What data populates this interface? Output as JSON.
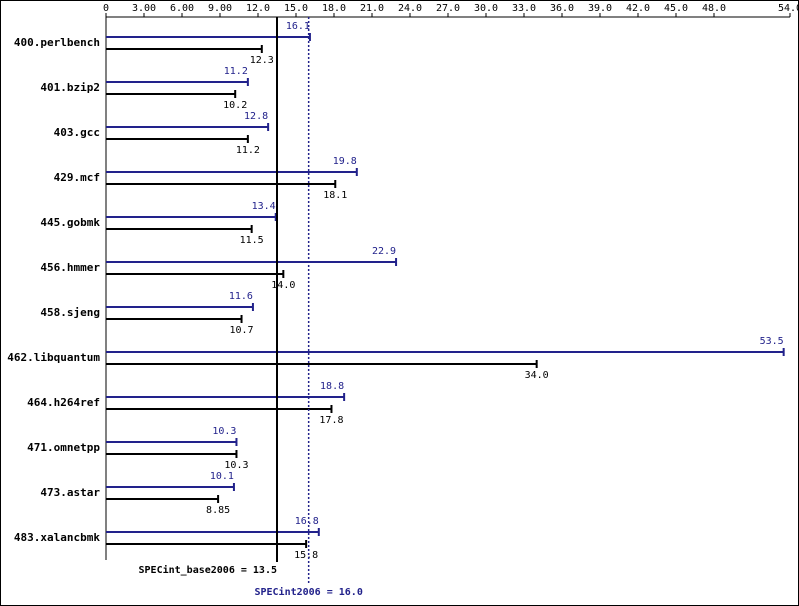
{
  "chart_data": {
    "type": "bar",
    "orientation": "horizontal",
    "categories": [
      "400.perlbench",
      "401.bzip2",
      "403.gcc",
      "429.mcf",
      "445.gobmk",
      "456.hmmer",
      "458.sjeng",
      "462.libquantum",
      "464.h264ref",
      "471.omnetpp",
      "473.astar",
      "483.xalancbmk"
    ],
    "series": [
      {
        "color": "#22228b",
        "values": [
          16.1,
          11.2,
          12.8,
          19.8,
          13.4,
          22.9,
          11.6,
          53.5,
          18.8,
          10.3,
          10.1,
          16.8
        ],
        "value_labels": [
          "16.1",
          "11.2",
          "12.8",
          "19.8",
          "13.4",
          "22.9",
          "11.6",
          "53.5",
          "18.8",
          "10.3",
          "10.1",
          "16.8"
        ]
      },
      {
        "color": "#000000",
        "values": [
          12.3,
          10.2,
          11.2,
          18.1,
          11.5,
          14.0,
          10.7,
          34.0,
          17.8,
          10.3,
          8.85,
          15.8
        ],
        "value_labels": [
          "12.3",
          "10.2",
          "11.2",
          "18.1",
          "11.5",
          "14.0",
          "10.7",
          "34.0",
          "17.8",
          "10.3",
          "8.85",
          "15.8"
        ]
      }
    ],
    "xlim": [
      0,
      54
    ],
    "xticks": [
      0,
      {
        "value": 3,
        "label": "3.00"
      },
      {
        "value": 6,
        "label": "6.00"
      },
      {
        "value": 9,
        "label": "9.00"
      },
      {
        "value": 12,
        "label": "12.0"
      },
      {
        "value": 15,
        "label": "15.0"
      },
      {
        "value": 18,
        "label": "18.0"
      },
      {
        "value": 21,
        "label": "21.0"
      },
      {
        "value": 24,
        "label": "24.0"
      },
      {
        "value": 27,
        "label": "27.0"
      },
      {
        "value": 30,
        "label": "30.0"
      },
      {
        "value": 33,
        "label": "33.0"
      },
      {
        "value": 36,
        "label": "36.0"
      },
      {
        "value": 39,
        "label": "39.0"
      },
      {
        "value": 42,
        "label": "42.0"
      },
      {
        "value": 45,
        "label": "45.0"
      },
      {
        "value": 48,
        "label": "48.0"
      },
      {
        "value": 54,
        "label": "54.0"
      }
    ],
    "mean_lines": [
      {
        "value": 13.5,
        "label": "SPECint_base2006 = 13.5",
        "color": "#000000"
      },
      {
        "value": 16.0,
        "label": "SPECint2006 = 16.0",
        "color": "#22228b"
      }
    ]
  }
}
